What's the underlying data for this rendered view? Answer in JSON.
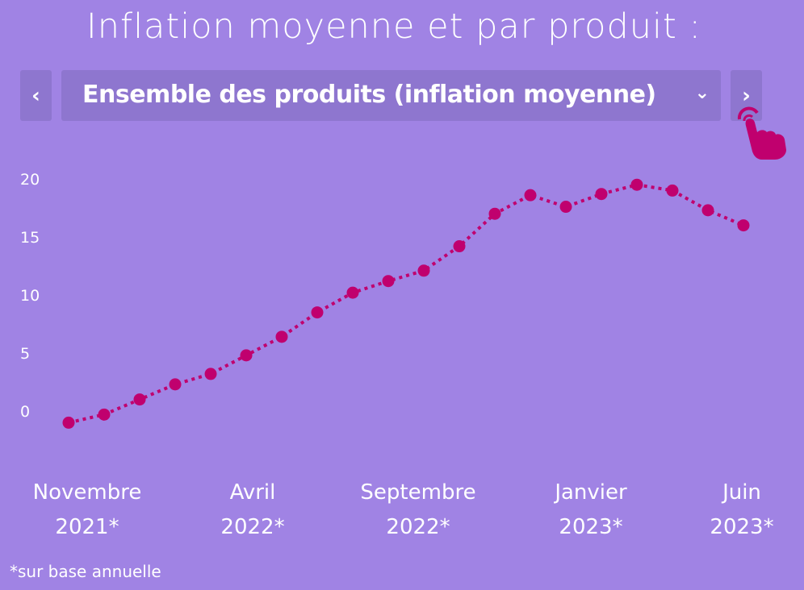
{
  "title": "Inflation moyenne et par produit :",
  "selector": {
    "prev_icon": "chevron-left",
    "value": "Ensemble des produits (inflation moyenne)",
    "dropdown_icon": "chevron-down",
    "next_icon": "chevron-right",
    "hint_icon": "tap-hand"
  },
  "colors": {
    "background": "#a083e4",
    "control": "#8e76cf",
    "series": "#c0006e"
  },
  "footnote": "*sur base annuelle",
  "chart_data": {
    "type": "line",
    "line_style": "dotted",
    "markers": true,
    "grid": false,
    "ylim": [
      -1.5,
      20
    ],
    "yticks": [
      "0",
      "5",
      "10",
      "15",
      "20"
    ],
    "ytick_values": [
      0,
      5,
      10,
      15,
      20
    ],
    "x": [
      "2021-11",
      "2021-12",
      "2022-01",
      "2022-02",
      "2022-03",
      "2022-04",
      "2022-05",
      "2022-06",
      "2022-07",
      "2022-08",
      "2022-09",
      "2022-10",
      "2022-11",
      "2022-12",
      "2023-01",
      "2023-02",
      "2023-03",
      "2023-04",
      "2023-05",
      "2023-06"
    ],
    "xtick_labels": [
      {
        "line1": "Novembre",
        "line2": "2021*",
        "index": 0
      },
      {
        "line1": "Avril",
        "line2": "2022*",
        "index": 5
      },
      {
        "line1": "Septembre",
        "line2": "2022*",
        "index": 10
      },
      {
        "line1": "Janvier",
        "line2": "2023*",
        "index": 14
      },
      {
        "line1": "Juin",
        "line2": "2023*",
        "index": 19
      }
    ],
    "values": [
      -1.0,
      -0.3,
      1.0,
      2.3,
      3.2,
      4.8,
      6.4,
      8.5,
      10.2,
      11.2,
      12.1,
      14.2,
      17.0,
      18.6,
      17.6,
      18.7,
      19.5,
      19.0,
      17.3,
      16.0
    ]
  }
}
